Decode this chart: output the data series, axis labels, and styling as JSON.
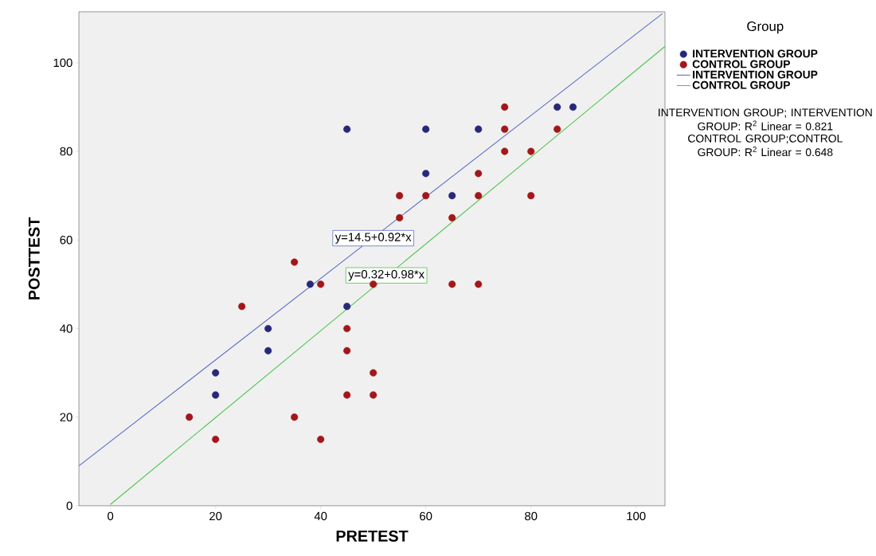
{
  "chart_data": {
    "type": "scatter",
    "xlabel": "PRETEST",
    "ylabel": "POSTTEST",
    "legend_title": "Group",
    "xlim": [
      -6,
      105.5
    ],
    "ylim": [
      0,
      111.5
    ],
    "xticks": [
      0,
      20,
      40,
      60,
      80,
      100
    ],
    "yticks": [
      0,
      20,
      40,
      60,
      80,
      100
    ],
    "grid": false,
    "legend": "right",
    "series": [
      {
        "name": "INTERVENTION GROUP",
        "marker": "circle",
        "color": "#26287a",
        "x": [
          20,
          20,
          30,
          30,
          38,
          45,
          45,
          60,
          60,
          65,
          70,
          85,
          88
        ],
        "values": [
          30,
          25,
          40,
          35,
          50,
          85,
          45,
          85,
          75,
          70,
          85,
          90,
          90
        ]
      },
      {
        "name": "CONTROL GROUP",
        "marker": "circle",
        "color": "#a3161a",
        "x": [
          15,
          20,
          25,
          35,
          35,
          40,
          40,
          45,
          45,
          45,
          50,
          50,
          50,
          55,
          55,
          60,
          65,
          65,
          70,
          70,
          70,
          75,
          75,
          75,
          80,
          80,
          85
        ],
        "values": [
          20,
          15,
          45,
          55,
          20,
          50,
          15,
          40,
          35,
          25,
          50,
          30,
          25,
          70,
          65,
          70,
          65,
          50,
          75,
          70,
          50,
          90,
          85,
          80,
          80,
          70,
          85
        ]
      },
      {
        "name": "INTERVENTION GROUP",
        "type": "line",
        "marker": "none",
        "color": "#5b6fc4",
        "x": [
          -6,
          105
        ],
        "values": [
          9,
          111.1
        ]
      },
      {
        "name": "CONTROL GROUP",
        "type": "line",
        "marker": "none",
        "color": "#4cc44c",
        "x": [
          0,
          105.5
        ],
        "values": [
          0.3,
          103.7
        ]
      }
    ],
    "annotations": [
      {
        "text": "y=14.5+0.92*x",
        "x": 50,
        "y": 60.4
      },
      {
        "text": "y=0.32+0.98*x",
        "x": 52.5,
        "y": 52
      },
      "INTERVENTION GROUP; INTERVENTION GROUP: R$^{2}$ Linear = 0.821",
      "CONTROL GROUP;CONTROL GROUP: R$^{2}$ Linear = 0.648"
    ]
  }
}
